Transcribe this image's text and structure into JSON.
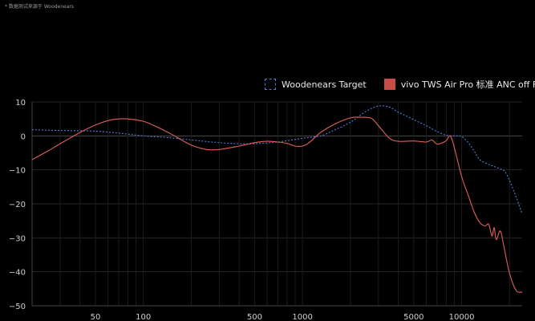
{
  "note": "* 数据测试来源于 Woodenears",
  "chart_data": {
    "type": "line",
    "x_scale": "log",
    "xlim": [
      20,
      24000
    ],
    "ylim": [
      -50,
      10
    ],
    "x_ticks": [
      50,
      100,
      500,
      1000,
      5000,
      10000
    ],
    "x_tick_labels": [
      "50",
      "100",
      "500",
      "1000",
      "5000",
      "10000"
    ],
    "y_ticks": [
      10,
      0,
      -10,
      -20,
      -30,
      -40,
      -50
    ],
    "y_tick_labels": [
      "10",
      "0",
      "−10",
      "−20",
      "−30",
      "−40",
      "−50"
    ],
    "grid": true,
    "legend_position": "top-right",
    "title": "",
    "xlabel": "",
    "ylabel": "",
    "series": [
      {
        "name": "Woodenears Target",
        "color": "#4f7fd8",
        "style": "dashed",
        "x": [
          20,
          30,
          50,
          70,
          100,
          150,
          200,
          300,
          400,
          500,
          700,
          1000,
          1300,
          1600,
          2000,
          2500,
          3000,
          3500,
          4000,
          5000,
          6000,
          7000,
          8000,
          9000,
          10000,
          11000,
          12000,
          13000,
          15000,
          17000,
          19000,
          22000,
          24000
        ],
        "values": [
          1.8,
          1.6,
          1.4,
          0.8,
          0.0,
          -0.6,
          -1.2,
          -2.0,
          -2.3,
          -2.3,
          -1.8,
          -0.7,
          0.0,
          1.8,
          4.0,
          7.2,
          8.8,
          8.5,
          7.0,
          4.8,
          3.0,
          1.3,
          0.2,
          0.0,
          -0.2,
          -2.0,
          -4.5,
          -7.0,
          -8.5,
          -9.5,
          -11.0,
          -18.0,
          -23.0
        ]
      },
      {
        "name": "vivo TWS Air Pro 标准 ANC off Frs",
        "color": "#e0605a",
        "style": "solid",
        "x": [
          20,
          25,
          30,
          40,
          50,
          60,
          70,
          80,
          100,
          120,
          150,
          200,
          250,
          300,
          400,
          500,
          600,
          700,
          800,
          900,
          1000,
          1100,
          1300,
          1600,
          2000,
          2300,
          2700,
          3000,
          3500,
          4000,
          5000,
          6000,
          6500,
          7000,
          7500,
          8000,
          8500,
          9000,
          10000,
          11000,
          12000,
          13000,
          14000,
          14800,
          15500,
          16000,
          16500,
          17500,
          18500,
          20000,
          22000,
          24000
        ],
        "values": [
          -7.0,
          -4.5,
          -2.3,
          1.0,
          3.2,
          4.5,
          5.0,
          5.0,
          4.3,
          2.8,
          0.5,
          -2.7,
          -4.0,
          -4.0,
          -3.0,
          -2.0,
          -1.6,
          -1.8,
          -2.2,
          -3.0,
          -3.0,
          -2.0,
          1.0,
          3.5,
          5.3,
          5.5,
          5.2,
          3.0,
          -0.6,
          -1.6,
          -1.5,
          -1.8,
          -1.2,
          -2.4,
          -2.1,
          -1.4,
          0.0,
          -3.5,
          -12.0,
          -17.5,
          -22.5,
          -25.5,
          -26.5,
          -26.0,
          -29.5,
          -27.0,
          -30.5,
          -28.0,
          -33.0,
          -40.5,
          -45.5,
          -46.0
        ]
      }
    ]
  }
}
